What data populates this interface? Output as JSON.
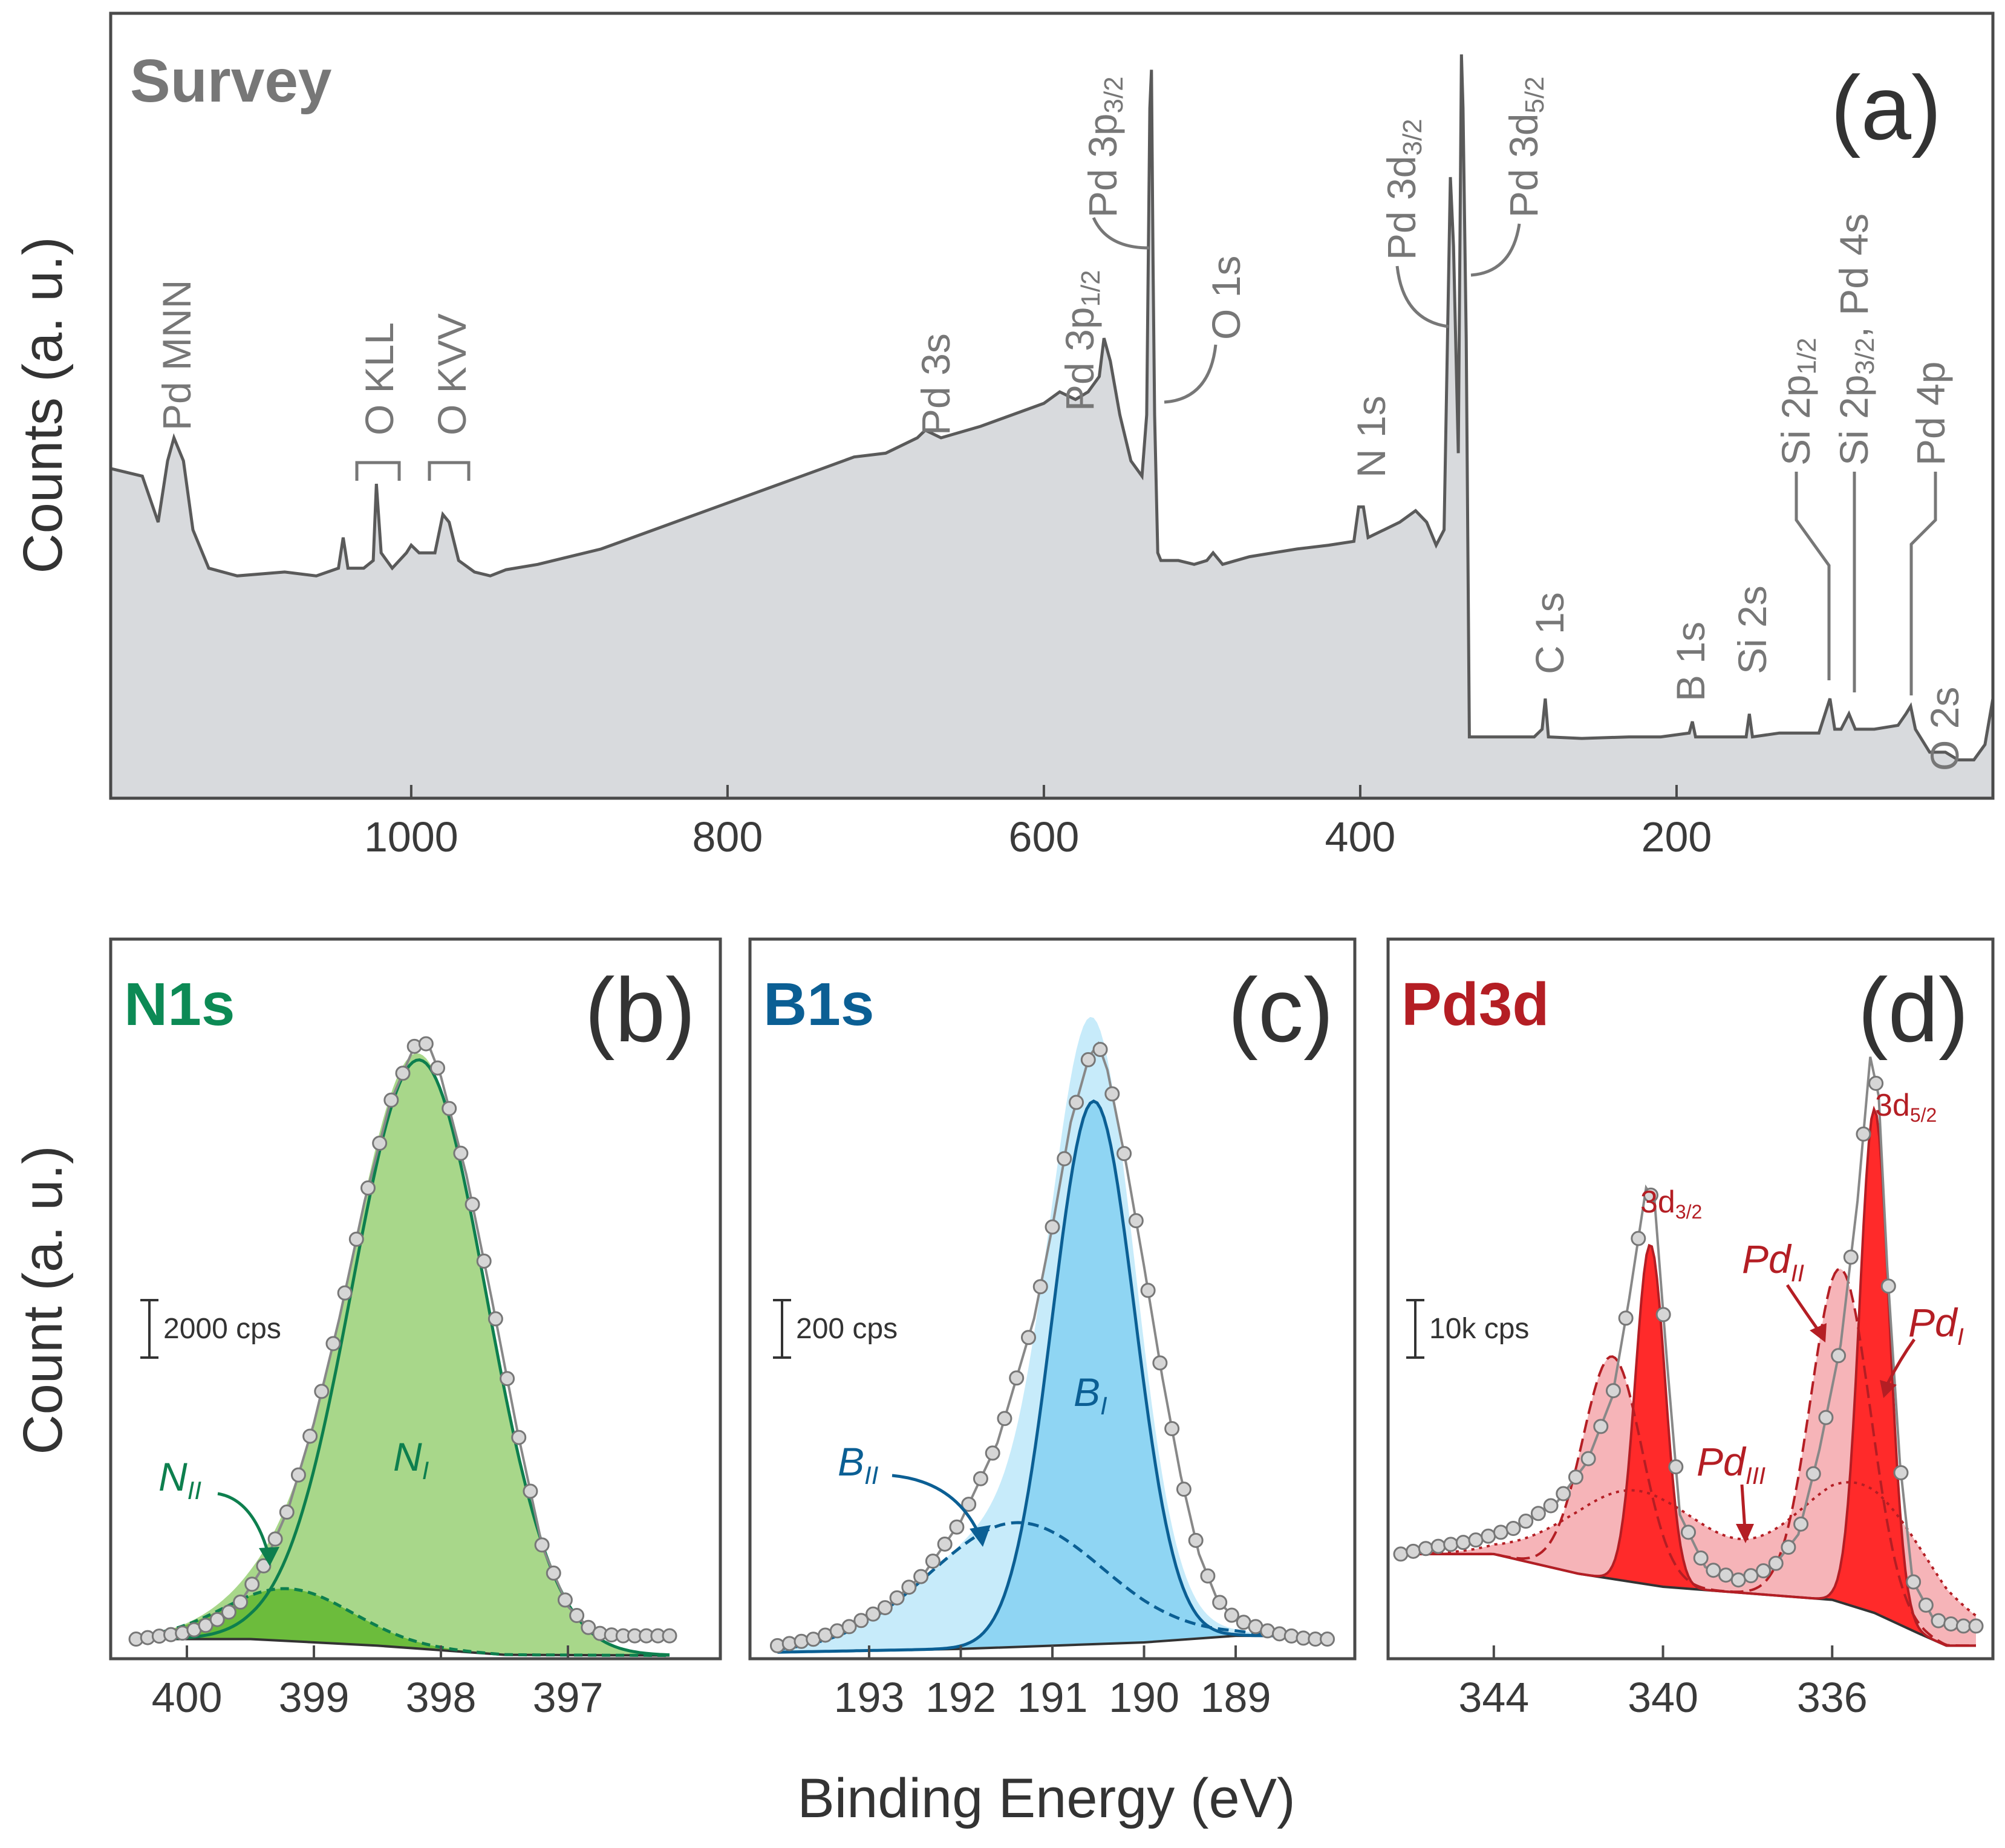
{
  "figure": {
    "shared_ylabel_bottom": "Count (a. u.)",
    "shared_xlabel": "Binding Energy (eV)"
  },
  "chart_data": [
    {
      "type": "area",
      "panel": "(a)",
      "title": "Survey",
      "ylabel": "Counts (a. u.)",
      "xlabel": "Binding Energy (eV)",
      "xlim": [
        1190,
        0
      ],
      "ylim": [
        0,
        100
      ],
      "xticks": [
        1000,
        800,
        600,
        400,
        200
      ],
      "colors": {
        "fill": "#d8dadd",
        "line": "#5a5a5a",
        "label": "#7a7a7a"
      },
      "points": [
        [
          1190,
          43
        ],
        [
          1170,
          42
        ],
        [
          1160,
          36
        ],
        [
          1154,
          44
        ],
        [
          1150,
          47
        ],
        [
          1144,
          44
        ],
        [
          1138,
          35
        ],
        [
          1128,
          30
        ],
        [
          1110,
          29
        ],
        [
          1080,
          29.5
        ],
        [
          1060,
          29
        ],
        [
          1046,
          30
        ],
        [
          1043,
          34
        ],
        [
          1040,
          30
        ],
        [
          1030,
          30
        ],
        [
          1024,
          31
        ],
        [
          1022,
          41
        ],
        [
          1019,
          32
        ],
        [
          1012,
          30
        ],
        [
          1003,
          32
        ],
        [
          1000,
          33
        ],
        [
          995,
          32
        ],
        [
          985,
          32
        ],
        [
          980,
          37
        ],
        [
          976,
          36
        ],
        [
          970,
          31
        ],
        [
          960,
          29.5
        ],
        [
          950,
          29
        ],
        [
          940,
          29.8
        ],
        [
          920,
          30.5
        ],
        [
          900,
          31.5
        ],
        [
          880,
          32.5
        ],
        [
          860,
          34
        ],
        [
          840,
          35.5
        ],
        [
          820,
          37
        ],
        [
          800,
          38.5
        ],
        [
          780,
          40
        ],
        [
          760,
          41.5
        ],
        [
          740,
          43
        ],
        [
          720,
          44.5
        ],
        [
          700,
          45
        ],
        [
          680,
          47
        ],
        [
          675,
          48
        ],
        [
          665,
          47
        ],
        [
          640,
          48.5
        ],
        [
          620,
          50
        ],
        [
          600,
          51.5
        ],
        [
          590,
          53
        ],
        [
          580,
          52
        ],
        [
          572,
          53
        ],
        [
          565,
          55
        ],
        [
          562,
          60
        ],
        [
          558,
          57
        ],
        [
          552,
          50
        ],
        [
          545,
          44
        ],
        [
          538,
          42
        ],
        [
          535,
          50
        ],
        [
          533,
          90
        ],
        [
          532,
          95
        ],
        [
          531,
          70
        ],
        [
          530,
          50
        ],
        [
          528,
          32
        ],
        [
          526,
          31
        ],
        [
          515,
          31
        ],
        [
          505,
          30.5
        ],
        [
          497,
          31
        ],
        [
          493,
          32
        ],
        [
          487,
          30.5
        ],
        [
          470,
          31.5
        ],
        [
          455,
          32
        ],
        [
          440,
          32.5
        ],
        [
          420,
          33
        ],
        [
          404,
          33.5
        ],
        [
          401,
          38
        ],
        [
          398,
          38
        ],
        [
          395,
          34
        ],
        [
          385,
          35
        ],
        [
          375,
          36
        ],
        [
          365,
          37.5
        ],
        [
          358,
          36
        ],
        [
          352,
          33
        ],
        [
          347,
          35
        ],
        [
          343,
          81
        ],
        [
          341,
          72
        ],
        [
          338,
          45
        ],
        [
          336,
          97
        ],
        [
          335,
          90
        ],
        [
          333,
          60
        ],
        [
          331,
          8
        ],
        [
          320,
          8
        ],
        [
          290,
          8
        ],
        [
          285,
          9
        ],
        [
          283,
          13
        ],
        [
          281,
          8
        ],
        [
          260,
          7.8
        ],
        [
          230,
          8
        ],
        [
          210,
          8
        ],
        [
          192,
          8.5
        ],
        [
          190,
          10
        ],
        [
          188,
          8
        ],
        [
          170,
          8
        ],
        [
          156,
          8
        ],
        [
          154,
          11
        ],
        [
          152,
          8
        ],
        [
          135,
          8.5
        ],
        [
          110,
          8.5
        ],
        [
          103,
          13
        ],
        [
          100,
          9
        ],
        [
          96,
          9
        ],
        [
          91,
          11
        ],
        [
          87,
          9
        ],
        [
          75,
          9
        ],
        [
          60,
          9.5
        ],
        [
          55,
          11
        ],
        [
          52,
          12
        ],
        [
          49,
          9
        ],
        [
          40,
          6
        ],
        [
          30,
          6
        ],
        [
          22,
          5
        ],
        [
          12,
          5
        ],
        [
          5,
          7
        ],
        [
          0,
          13
        ]
      ],
      "peak_labels": [
        {
          "text": "Pd MNN",
          "sub": ""
        },
        {
          "text": "O KLL",
          "sub": ""
        },
        {
          "text": "O KVV",
          "sub": ""
        },
        {
          "text": "Pd 3s",
          "sub": ""
        },
        {
          "text": "Pd 3p",
          "sub": "1/2"
        },
        {
          "text": "Pd 3p",
          "sub": "3/2"
        },
        {
          "text": "O 1s",
          "sub": ""
        },
        {
          "text": "N 1s",
          "sub": ""
        },
        {
          "text": "Pd 3d",
          "sub": "3/2"
        },
        {
          "text": "Pd 3d",
          "sub": "5/2"
        },
        {
          "text": "C 1s",
          "sub": ""
        },
        {
          "text": "B 1s",
          "sub": ""
        },
        {
          "text": "Si 2s",
          "sub": ""
        },
        {
          "text": "Si 2p",
          "sub": "1/2"
        },
        {
          "text": "Si 2p",
          "sub": "3/2",
          "suffix": ", Pd 4s"
        },
        {
          "text": "Pd 4p",
          "sub": ""
        },
        {
          "text": "O 2s",
          "sub": ""
        }
      ]
    },
    {
      "type": "area",
      "panel": "(b)",
      "title": "N1s",
      "title_color": "#0c8a55",
      "xlim": [
        400.6,
        395.8
      ],
      "ylim": [
        0,
        110
      ],
      "xticks": [
        400,
        399,
        398,
        397
      ],
      "scale_bar": "2000 cps",
      "points": [
        [
          400.4,
          3
        ],
        [
          400.2,
          3.5
        ],
        [
          400,
          4
        ],
        [
          399.8,
          5.5
        ],
        [
          399.6,
          8
        ],
        [
          399.4,
          14
        ],
        [
          399.2,
          23
        ],
        [
          399,
          36
        ],
        [
          398.8,
          52
        ],
        [
          398.6,
          70
        ],
        [
          398.4,
          85
        ],
        [
          398.2,
          94
        ],
        [
          398.1,
          94
        ],
        [
          398,
          89
        ],
        [
          397.8,
          74
        ],
        [
          397.6,
          55
        ],
        [
          397.4,
          35
        ],
        [
          397.2,
          17
        ],
        [
          397,
          8
        ],
        [
          396.8,
          4
        ],
        [
          396.6,
          3.5
        ],
        [
          396.4,
          3.5
        ],
        [
          396.2,
          3.5
        ]
      ],
      "background": [
        [
          400.4,
          3
        ],
        [
          399.5,
          3
        ],
        [
          398.5,
          2
        ],
        [
          397.5,
          0.6
        ],
        [
          396.2,
          0.5
        ]
      ],
      "components": [
        {
          "name": "N",
          "sub": "I",
          "color": "#0d7f4e",
          "fill": "#a8d78a",
          "center": 398.17,
          "amp": 90,
          "sigma": 0.53
        },
        {
          "name": "N",
          "sub": "II",
          "color": "#0d7f4e",
          "fill": "#6cbc3c",
          "center": 399.2,
          "amp": 8,
          "sigma": 0.5
        }
      ]
    },
    {
      "type": "area",
      "panel": "(c)",
      "title": "B1s",
      "title_color": "#0b5f94",
      "xlim": [
        194.3,
        187.7
      ],
      "ylim": [
        0,
        110
      ],
      "xticks": [
        193,
        192,
        191,
        190,
        189
      ],
      "scale_bar": "200 cps",
      "points": [
        [
          194,
          2
        ],
        [
          193.6,
          3
        ],
        [
          193.2,
          5
        ],
        [
          192.8,
          8
        ],
        [
          192.4,
          13
        ],
        [
          192,
          21
        ],
        [
          191.6,
          33
        ],
        [
          191.2,
          52
        ],
        [
          191,
          66
        ],
        [
          190.8,
          82
        ],
        [
          190.6,
          92
        ],
        [
          190.5,
          94
        ],
        [
          190.4,
          90
        ],
        [
          190.2,
          76
        ],
        [
          190,
          60
        ],
        [
          189.8,
          43
        ],
        [
          189.6,
          28
        ],
        [
          189.4,
          16
        ],
        [
          189.2,
          9
        ],
        [
          189,
          6
        ],
        [
          188.6,
          4
        ],
        [
          188.2,
          3
        ],
        [
          188,
          3
        ]
      ],
      "background": [
        [
          194,
          1
        ],
        [
          192,
          1.5
        ],
        [
          190,
          2.5
        ],
        [
          189,
          3.5
        ],
        [
          188,
          3.5
        ]
      ],
      "components": [
        {
          "name": "B",
          "sub": "I",
          "color": "#0b5f94",
          "fill": "#8fd5f3",
          "center": 190.55,
          "amp": 83,
          "sigma": 0.45
        },
        {
          "name": "B",
          "sub": "II",
          "color": "#0b5f94",
          "fill": "#c7ebfa",
          "center": 191.4,
          "amp": 19,
          "sigma": 0.95
        }
      ]
    },
    {
      "type": "area",
      "panel": "(d)",
      "title": "Pd3d",
      "title_color": "#b41e24",
      "xlim": [
        346.5,
        332.2
      ],
      "ylim": [
        0,
        110
      ],
      "xticks": [
        344,
        340,
        336
      ],
      "scale_bar": "10k cps",
      "points": [
        [
          346.2,
          16
        ],
        [
          345.5,
          17
        ],
        [
          344.5,
          18
        ],
        [
          343.5,
          20
        ],
        [
          342.5,
          24
        ],
        [
          341.8,
          30
        ],
        [
          341.2,
          40
        ],
        [
          340.8,
          55
        ],
        [
          340.4,
          72
        ],
        [
          340.2,
          70
        ],
        [
          339.9,
          45
        ],
        [
          339.6,
          22
        ],
        [
          339,
          14
        ],
        [
          338.2,
          12
        ],
        [
          337.4,
          14
        ],
        [
          336.8,
          19
        ],
        [
          336.3,
          32
        ],
        [
          335.8,
          48
        ],
        [
          335.4,
          70
        ],
        [
          335.1,
          92
        ],
        [
          334.9,
          86
        ],
        [
          334.7,
          60
        ],
        [
          334.4,
          30
        ],
        [
          334.1,
          12
        ],
        [
          333.6,
          6
        ],
        [
          333,
          5
        ],
        [
          332.6,
          5
        ]
      ],
      "background": [
        [
          346.2,
          16
        ],
        [
          344,
          16
        ],
        [
          342,
          13
        ],
        [
          340,
          11
        ],
        [
          338,
          10
        ],
        [
          336,
          9
        ],
        [
          335,
          7
        ],
        [
          334,
          4
        ],
        [
          333.3,
          2
        ],
        [
          332.6,
          2
        ]
      ],
      "peak_labels": [
        {
          "text": "3d",
          "sub": "3/2"
        },
        {
          "text": "3d",
          "sub": "5/2"
        }
      ],
      "components": [
        {
          "name": "Pd",
          "sub": "I",
          "color": "#b41e24",
          "fill": "#ff2a2a",
          "peaks": [
            [
              340.3,
              52,
              0.35
            ],
            [
              335.0,
              77,
              0.35
            ]
          ]
        },
        {
          "name": "Pd",
          "sub": "II",
          "color": "#b41e24",
          "fill": "#f6b4b8",
          "peaks": [
            [
              341.2,
              34,
              0.7
            ],
            [
              335.8,
              51,
              0.7
            ]
          ]
        },
        {
          "name": "Pd",
          "sub": "III",
          "color": "#b41e24",
          "fill": "#f7c6c8",
          "peaks": [
            [
              340.6,
              14,
              1.6
            ],
            [
              335.3,
              19,
              1.6
            ]
          ]
        }
      ]
    }
  ]
}
